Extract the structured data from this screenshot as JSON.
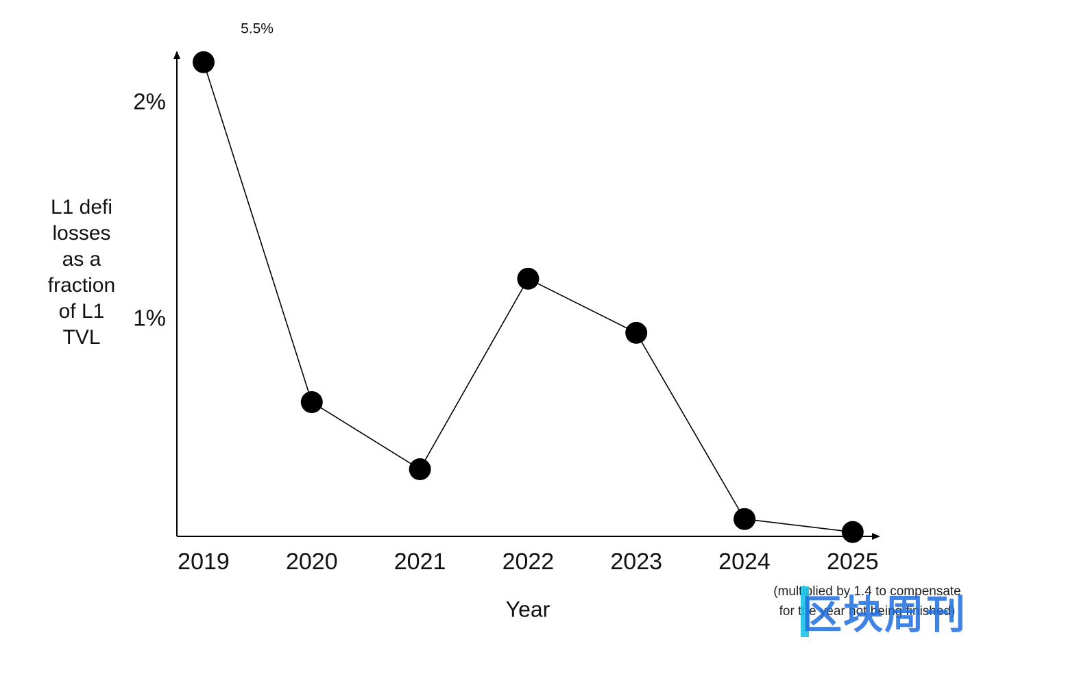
{
  "chart_data": {
    "type": "line",
    "x_label": "Year",
    "y_label": "L1 defi losses as a fraction of L1 TVL",
    "categories": [
      "2019",
      "2020",
      "2021",
      "2022",
      "2023",
      "2024",
      "2025"
    ],
    "values": [
      2.19,
      0.62,
      0.31,
      1.19,
      0.94,
      0.08,
      0.02
    ],
    "color": "#000000",
    "ylim": [
      0,
      2.24
    ],
    "yticks": [
      {
        "value": 1,
        "label": "1%"
      },
      {
        "value": 2,
        "label": "2%"
      }
    ],
    "grid": false,
    "annotations": [
      "5.5%",
      "(multiplied by 1.4 to compensate for the year not being finished)"
    ]
  },
  "watermark": "区块周刊"
}
